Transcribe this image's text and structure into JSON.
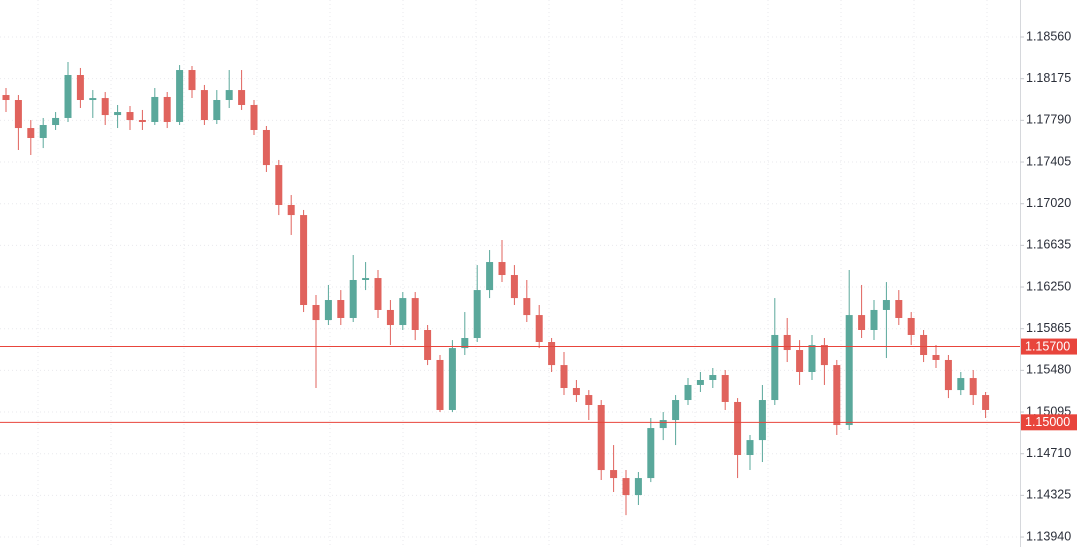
{
  "chart_data": {
    "type": "candlestick",
    "up_color": "#5aa89b",
    "down_color": "#e0635d",
    "grid": true,
    "ylim": [
      1.13848,
      1.18902
    ],
    "yticks": [
      {
        "value": 1.1394,
        "label": "1.13940"
      },
      {
        "value": 1.14325,
        "label": "1.14325"
      },
      {
        "value": 1.1471,
        "label": "1.14710"
      },
      {
        "value": 1.15095,
        "label": "1.15095"
      },
      {
        "value": 1.1548,
        "label": "1.15480"
      },
      {
        "value": 1.15865,
        "label": "1.15865"
      },
      {
        "value": 1.1625,
        "label": "1.16250"
      },
      {
        "value": 1.16635,
        "label": "1.16635"
      },
      {
        "value": 1.1702,
        "label": "1.17020"
      },
      {
        "value": 1.17405,
        "label": "1.17405"
      },
      {
        "value": 1.1779,
        "label": "1.17790"
      },
      {
        "value": 1.18175,
        "label": "1.18175"
      },
      {
        "value": 1.1856,
        "label": "1.18560"
      }
    ],
    "price_lines": [
      {
        "value": 1.157,
        "label": "1.15700",
        "color": "#e8453c"
      },
      {
        "value": 1.15,
        "label": "1.15000",
        "color": "#e8453c"
      }
    ],
    "open": [
      1.18024,
      1.17978,
      1.17719,
      1.17627,
      1.17747,
      1.17812,
      1.18209,
      1.17978,
      1.17996,
      1.17839,
      1.17867,
      1.17793,
      1.17775,
      1.18006,
      1.17775,
      1.18255,
      1.1807,
      1.17793,
      1.17978,
      1.1807,
      1.17932,
      1.17701,
      1.17377,
      1.17008,
      1.16915,
      1.16084,
      1.15945,
      1.1613,
      1.15964,
      1.16315,
      1.16333,
      1.16038,
      1.15899,
      1.16148,
      1.15853,
      1.15576,
      1.15114,
      1.15686,
      1.15779,
      1.16222,
      1.16481,
      1.16361,
      1.16148,
      1.15991,
      1.15742,
      1.15529,
      1.15317,
      1.15252,
      1.1516,
      1.14559,
      1.14485,
      1.14328,
      1.14485,
      1.14947,
      1.15021,
      1.15206,
      1.15345,
      1.15391,
      1.15437,
      1.15188,
      1.14698,
      1.14836,
      1.15206,
      1.15807,
      1.15668,
      1.15465,
      1.15714,
      1.15529,
      1.14975,
      1.15991,
      1.15853,
      1.16038,
      1.1613,
      1.15964,
      1.15807,
      1.15622,
      1.15576,
      1.15298,
      1.15409,
      1.15252
    ],
    "high": [
      1.18089,
      1.18024,
      1.17793,
      1.17812,
      1.17867,
      1.18329,
      1.18274,
      1.1807,
      1.18052,
      1.17932,
      1.17923,
      1.17886,
      1.18089,
      1.18052,
      1.18301,
      1.18292,
      1.18117,
      1.1807,
      1.18255,
      1.18255,
      1.17978,
      1.17738,
      1.17424,
      1.171,
      1.16962,
      1.16176,
      1.16269,
      1.16222,
      1.16546,
      1.16481,
      1.16407,
      1.1613,
      1.16204,
      1.16204,
      1.15899,
      1.15622,
      1.1576,
      1.16019,
      1.16453,
      1.16592,
      1.16684,
      1.16453,
      1.16315,
      1.16084,
      1.15779,
      1.1565,
      1.15391,
      1.15298,
      1.15206,
      1.1479,
      1.14559,
      1.14541,
      1.1504,
      1.15095,
      1.15252,
      1.15409,
      1.15465,
      1.15502,
      1.15483,
      1.15224,
      1.14883,
      1.15345,
      1.16148,
      1.15964,
      1.1576,
      1.15807,
      1.15779,
      1.15576,
      1.16407,
      1.16269,
      1.1613,
      1.16296,
      1.16222,
      1.16019,
      1.15853,
      1.15714,
      1.15622,
      1.15465,
      1.15483,
      1.1528
    ],
    "low": [
      1.17867,
      1.17516,
      1.1747,
      1.17534,
      1.17701,
      1.17775,
      1.17904,
      1.17812,
      1.17747,
      1.17719,
      1.17701,
      1.17701,
      1.17747,
      1.17719,
      1.17747,
      1.17996,
      1.17747,
      1.17756,
      1.17904,
      1.17886,
      1.17655,
      1.17313,
      1.16915,
      1.16731,
      1.16019,
      1.15317,
      1.15899,
      1.15899,
      1.15927,
      1.16222,
      1.15964,
      1.15714,
      1.15853,
      1.1576,
      1.15529,
      1.15095,
      1.15095,
      1.15622,
      1.15742,
      1.16148,
      1.16296,
      1.16084,
      1.15927,
      1.15686,
      1.15465,
      1.15252,
      1.15188,
      1.15021,
      1.14467,
      1.14356,
      1.14143,
      1.14236,
      1.14448,
      1.14836,
      1.1479,
      1.1516,
      1.1528,
      1.15317,
      1.15114,
      1.14485,
      1.14559,
      1.14633,
      1.1516,
      1.15557,
      1.15345,
      1.15391,
      1.15345,
      1.14883,
      1.14929,
      1.15779,
      1.1576,
      1.15594,
      1.15899,
      1.15714,
      1.15557,
      1.15502,
      1.15224,
      1.15252,
      1.1516,
      1.1504
    ],
    "close": [
      1.17978,
      1.17719,
      1.17627,
      1.17747,
      1.17812,
      1.18209,
      1.17978,
      1.17996,
      1.17839,
      1.17867,
      1.17793,
      1.17775,
      1.18006,
      1.17775,
      1.18255,
      1.1807,
      1.17793,
      1.17978,
      1.1807,
      1.17932,
      1.17701,
      1.17377,
      1.17008,
      1.16915,
      1.16084,
      1.15945,
      1.1613,
      1.15964,
      1.16315,
      1.16333,
      1.16038,
      1.15899,
      1.16148,
      1.15853,
      1.15576,
      1.15114,
      1.15686,
      1.15779,
      1.16222,
      1.16481,
      1.16361,
      1.16148,
      1.15991,
      1.15742,
      1.15529,
      1.15317,
      1.15252,
      1.1516,
      1.14559,
      1.14485,
      1.14328,
      1.14485,
      1.14947,
      1.15021,
      1.15206,
      1.15345,
      1.15391,
      1.15437,
      1.15188,
      1.14698,
      1.14836,
      1.15206,
      1.15807,
      1.15668,
      1.15465,
      1.15714,
      1.15529,
      1.14975,
      1.15991,
      1.15853,
      1.16038,
      1.1613,
      1.15964,
      1.15807,
      1.15622,
      1.15576,
      1.15298,
      1.15409,
      1.15252,
      1.15114
    ]
  }
}
